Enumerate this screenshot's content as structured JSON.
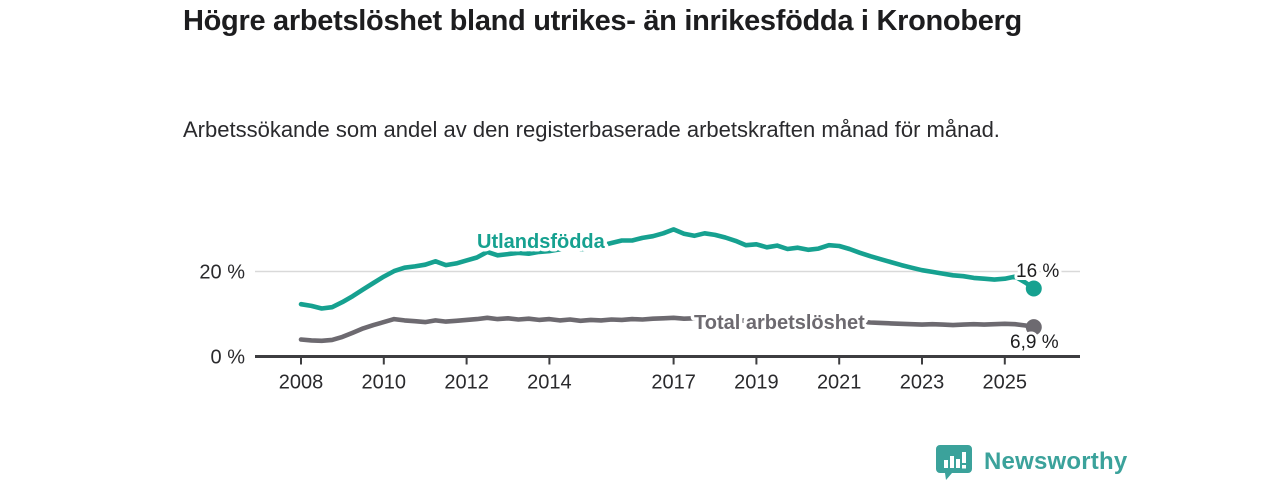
{
  "chart_data": {
    "type": "line",
    "title": "Högre arbetslöshet bland utrikes- än inrikesfödda i Kronoberg",
    "subtitle": "Arbetssökande som andel av den registerbaserade arbetskraften månad för månad.",
    "unit": "%",
    "grid": "horizontal-at-20-only",
    "legend": "inline-line-labels",
    "xlim": [
      2006.9,
      2026.8
    ],
    "ylim": [
      0,
      33
    ],
    "x_ticks": [
      2008,
      2010,
      2012,
      2014,
      2017,
      2019,
      2021,
      2023,
      2025
    ],
    "y_ticks": [
      {
        "value": 0,
        "label": "0 %"
      },
      {
        "value": 20,
        "label": "20 %"
      }
    ],
    "colors": {
      "axis": "#3d3d40",
      "grid": "#d9d9d9",
      "tick_text": "#2a2a2d",
      "value_label_text": "#1d1d1f"
    },
    "x": [
      2008.0,
      2008.25,
      2008.5,
      2008.75,
      2009.0,
      2009.25,
      2009.5,
      2009.75,
      2010.0,
      2010.25,
      2010.5,
      2010.75,
      2011.0,
      2011.25,
      2011.5,
      2011.75,
      2012.0,
      2012.25,
      2012.5,
      2012.75,
      2013.0,
      2013.25,
      2013.5,
      2013.75,
      2014.0,
      2014.25,
      2014.5,
      2014.75,
      2015.0,
      2015.25,
      2015.5,
      2015.75,
      2016.0,
      2016.25,
      2016.5,
      2016.75,
      2017.0,
      2017.25,
      2017.5,
      2017.75,
      2018.0,
      2018.25,
      2018.5,
      2018.75,
      2019.0,
      2019.25,
      2019.5,
      2019.75,
      2020.0,
      2020.25,
      2020.5,
      2020.75,
      2021.0,
      2021.25,
      2021.5,
      2021.75,
      2022.0,
      2022.25,
      2022.5,
      2022.75,
      2023.0,
      2023.25,
      2023.5,
      2023.75,
      2024.0,
      2024.25,
      2024.5,
      2024.75,
      2025.0,
      2025.25,
      2025.5,
      2025.7
    ],
    "series": [
      {
        "name": "Utlandsfödda",
        "color": "#16a190",
        "end_value": 16.0,
        "end_label": "16 %",
        "values": [
          12.3,
          11.9,
          11.3,
          11.6,
          12.8,
          14.2,
          15.8,
          17.3,
          18.8,
          20.1,
          20.9,
          21.2,
          21.6,
          22.4,
          21.5,
          21.9,
          22.6,
          23.3,
          24.6,
          23.8,
          24.1,
          24.4,
          24.2,
          24.6,
          24.8,
          25.2,
          26.0,
          25.2,
          25.6,
          26.1,
          26.7,
          27.3,
          27.3,
          27.9,
          28.3,
          29.0,
          29.9,
          28.9,
          28.4,
          29.0,
          28.6,
          28.0,
          27.2,
          26.2,
          26.4,
          25.7,
          26.1,
          25.3,
          25.6,
          25.1,
          25.4,
          26.2,
          26.0,
          25.3,
          24.4,
          23.6,
          22.9,
          22.2,
          21.5,
          20.9,
          20.3,
          19.9,
          19.5,
          19.1,
          18.9,
          18.5,
          18.3,
          18.1,
          18.3,
          18.8,
          17.4,
          16.0
        ]
      },
      {
        "name": "Total arbetslöshet",
        "color": "#6d6a70",
        "end_value": 6.9,
        "end_label": "6,9 %",
        "values": [
          4.0,
          3.8,
          3.7,
          3.9,
          4.6,
          5.6,
          6.6,
          7.4,
          8.1,
          8.8,
          8.5,
          8.3,
          8.1,
          8.5,
          8.2,
          8.4,
          8.6,
          8.8,
          9.1,
          8.8,
          9.0,
          8.7,
          8.9,
          8.6,
          8.8,
          8.5,
          8.7,
          8.4,
          8.6,
          8.5,
          8.7,
          8.6,
          8.8,
          8.7,
          8.9,
          9.0,
          9.1,
          8.9,
          9.0,
          8.8,
          8.9,
          8.7,
          8.6,
          8.4,
          8.3,
          8.2,
          8.1,
          8.2,
          8.4,
          8.9,
          9.0,
          8.8,
          8.6,
          8.4,
          8.2,
          8.0,
          7.9,
          7.8,
          7.7,
          7.6,
          7.5,
          7.6,
          7.5,
          7.4,
          7.5,
          7.6,
          7.5,
          7.6,
          7.7,
          7.6,
          7.3,
          6.9
        ]
      }
    ]
  },
  "branding": {
    "logo_text": "Newsworthy",
    "logo_color": "#3ba29b"
  }
}
